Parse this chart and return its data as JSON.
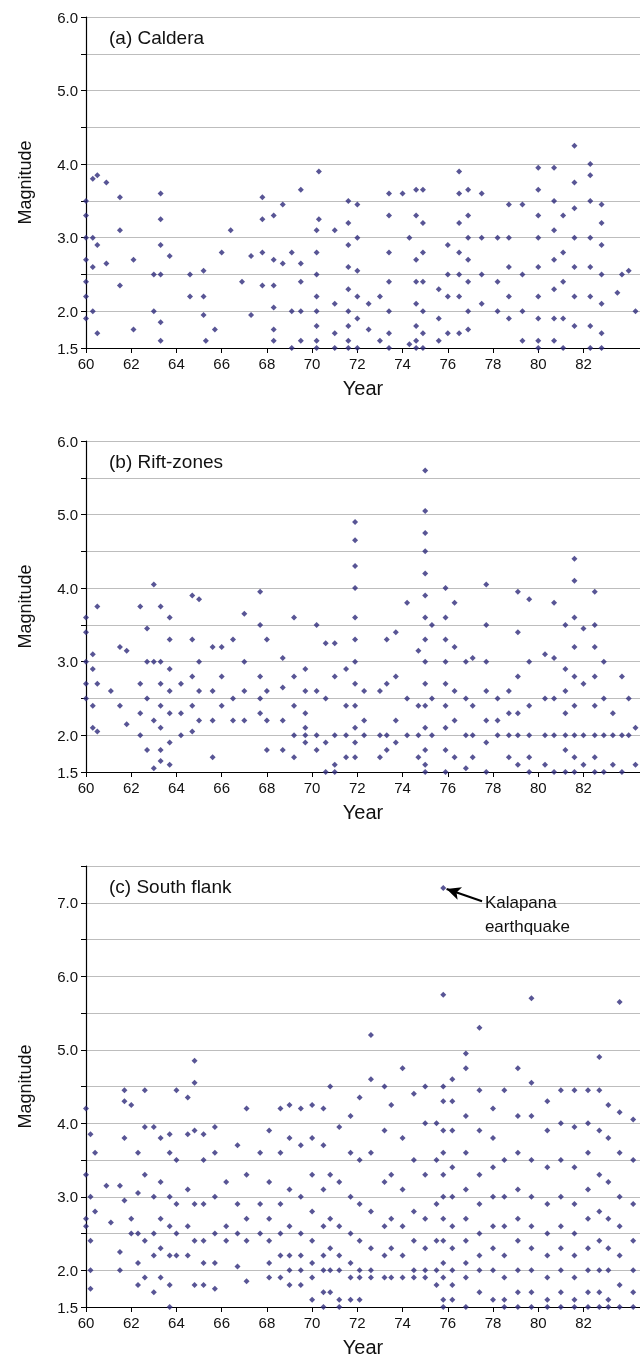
{
  "chart_data": [
    {
      "type": "scatter",
      "title": "(a) Caldera",
      "xlabel": "Year",
      "ylabel": "Magnitude",
      "color": "#2e2a7a",
      "marker": "diamond",
      "grid": "y",
      "xlim": [
        60,
        84.5
      ],
      "xticks": [
        60,
        62,
        64,
        66,
        68,
        70,
        72,
        74,
        76,
        78,
        80,
        82
      ],
      "ylim": [
        1.5,
        6.0
      ],
      "yticks": [
        {
          "value": 1.5,
          "label": "1.5"
        },
        {
          "value": 2,
          "label": "2.0"
        },
        {
          "value": 2.5,
          "label": null
        },
        {
          "value": 3,
          "label": "3.0"
        },
        {
          "value": 3.5,
          "label": null
        },
        {
          "value": 4,
          "label": "4.0"
        },
        {
          "value": 4.5,
          "label": null
        },
        {
          "value": 5,
          "label": "5.0"
        },
        {
          "value": 5.5,
          "label": null
        },
        {
          "value": 6,
          "label": "6.0"
        }
      ],
      "x": [
        60.0,
        60.0,
        60.0,
        60.0,
        60.0,
        60.0,
        60.0,
        60.3,
        60.3,
        60.3,
        60.3,
        60.5,
        60.5,
        60.5,
        60.9,
        60.9,
        61.5,
        61.5,
        61.5,
        62.1,
        62.1,
        63.0,
        63.0,
        63.3,
        63.3,
        63.3,
        63.3,
        63.3,
        63.3,
        63.7,
        64.6,
        64.6,
        65.2,
        65.2,
        65.2,
        65.3,
        65.7,
        66.0,
        66.4,
        66.9,
        67.3,
        67.3,
        67.8,
        67.8,
        67.8,
        67.8,
        68.3,
        68.3,
        68.3,
        68.3,
        68.3,
        68.3,
        68.7,
        68.7,
        69.1,
        69.1,
        69.1,
        69.5,
        69.5,
        69.5,
        69.5,
        69.5,
        70.2,
        70.2,
        70.2,
        70.2,
        70.2,
        70.2,
        70.2,
        70.2,
        70.3,
        70.3,
        71.0,
        71.0,
        71.0,
        71.0,
        71.6,
        71.6,
        71.6,
        71.6,
        71.6,
        71.6,
        71.6,
        71.6,
        71.6,
        72.0,
        72.0,
        72.0,
        72.0,
        72.0,
        72.0,
        72.5,
        72.5,
        73.0,
        73.0,
        73.4,
        73.4,
        73.4,
        73.4,
        73.4,
        73.4,
        73.4,
        74.0,
        74.3,
        74.3,
        74.6,
        74.6,
        74.6,
        74.6,
        74.6,
        74.6,
        74.6,
        74.6,
        74.9,
        74.9,
        74.9,
        74.9,
        74.9,
        74.9,
        74.9,
        75.6,
        75.6,
        75.6,
        76.0,
        76.0,
        76.0,
        76.0,
        76.5,
        76.5,
        76.5,
        76.5,
        76.5,
        76.5,
        76.5,
        76.9,
        76.9,
        76.9,
        76.9,
        76.9,
        76.9,
        76.9,
        77.5,
        77.5,
        77.5,
        77.5,
        78.2,
        78.2,
        78.2,
        78.7,
        78.7,
        78.7,
        78.7,
        78.7,
        79.3,
        79.3,
        79.3,
        79.3,
        80.0,
        80.0,
        80.0,
        80.0,
        80.0,
        80.0,
        80.0,
        80.0,
        80.0,
        80.7,
        80.7,
        80.7,
        80.7,
        80.7,
        80.7,
        80.7,
        81.1,
        81.1,
        81.1,
        81.1,
        81.1,
        81.6,
        81.6,
        81.6,
        81.6,
        81.6,
        81.6,
        81.6,
        82.3,
        82.3,
        82.3,
        82.3,
        82.3,
        82.3,
        82.3,
        82.3,
        82.8,
        82.8,
        82.8,
        82.8,
        82.8,
        82.8,
        82.8,
        83.5,
        83.7,
        84.0,
        84.3
      ],
      "values": [
        3.5,
        3.3,
        3.0,
        2.7,
        2.4,
        2.2,
        1.9,
        3.8,
        3.0,
        2.6,
        2.0,
        3.85,
        2.9,
        1.7,
        3.75,
        2.65,
        3.55,
        3.1,
        2.35,
        2.7,
        1.75,
        2.5,
        2.0,
        3.6,
        3.25,
        2.9,
        2.5,
        1.85,
        1.6,
        2.75,
        2.5,
        2.2,
        2.55,
        2.2,
        1.95,
        1.6,
        1.75,
        2.8,
        3.1,
        2.4,
        2.75,
        1.95,
        3.55,
        3.25,
        2.8,
        2.35,
        3.3,
        2.7,
        2.35,
        2.05,
        1.75,
        1.6,
        3.45,
        2.65,
        2.8,
        2.0,
        1.5,
        3.65,
        2.65,
        2.4,
        2.0,
        1.6,
        3.1,
        2.8,
        2.5,
        2.2,
        2.0,
        1.8,
        1.6,
        1.5,
        3.9,
        3.25,
        3.1,
        2.1,
        1.7,
        1.5,
        3.5,
        3.2,
        2.9,
        2.6,
        2.3,
        2.0,
        1.8,
        1.6,
        1.5,
        3.45,
        3.0,
        2.55,
        2.2,
        1.9,
        1.5,
        2.1,
        1.75,
        2.2,
        1.6,
        3.6,
        3.3,
        2.8,
        2.4,
        2.0,
        1.7,
        1.5,
        3.6,
        3.0,
        1.55,
        3.65,
        3.3,
        2.7,
        2.4,
        2.1,
        1.8,
        1.6,
        1.5,
        3.65,
        3.2,
        2.8,
        2.4,
        2.0,
        1.7,
        1.5,
        2.3,
        1.9,
        1.6,
        2.9,
        2.5,
        2.2,
        1.7,
        3.9,
        3.6,
        3.2,
        2.8,
        2.5,
        2.2,
        1.7,
        3.65,
        3.3,
        3.0,
        2.7,
        2.4,
        2.0,
        1.75,
        3.6,
        3.0,
        2.5,
        2.1,
        3.0,
        2.4,
        2.0,
        3.45,
        3.0,
        2.6,
        2.2,
        1.9,
        3.45,
        2.5,
        2.0,
        1.6,
        3.95,
        3.65,
        3.3,
        3.0,
        2.6,
        2.2,
        1.9,
        1.6,
        1.5,
        3.95,
        3.5,
        3.1,
        2.7,
        2.3,
        1.9,
        1.6,
        3.3,
        2.8,
        2.4,
        1.9,
        1.5,
        4.25,
        3.75,
        3.4,
        3.0,
        2.6,
        2.2,
        1.8,
        4.0,
        3.85,
        3.5,
        3.0,
        2.6,
        2.2,
        1.8,
        1.5,
        3.45,
        3.2,
        2.9,
        2.5,
        2.1,
        1.7,
        1.5,
        2.25,
        2.5,
        2.55,
        2.0
      ]
    },
    {
      "type": "scatter",
      "title": "(b) Rift-zones",
      "xlabel": "Year",
      "ylabel": "Magnitude",
      "color": "#2e2a7a",
      "marker": "diamond",
      "grid": "y",
      "xlim": [
        60,
        84.5
      ],
      "xticks": [
        60,
        62,
        64,
        66,
        68,
        70,
        72,
        74,
        76,
        78,
        80,
        82
      ],
      "ylim": [
        1.5,
        6.0
      ],
      "yticks": [
        {
          "value": 1.5,
          "label": "1.5"
        },
        {
          "value": 2,
          "label": "2.0"
        },
        {
          "value": 2.5,
          "label": null
        },
        {
          "value": 3,
          "label": "3.0"
        },
        {
          "value": 3.5,
          "label": null
        },
        {
          "value": 4,
          "label": "4.0"
        },
        {
          "value": 4.5,
          "label": null
        },
        {
          "value": 5,
          "label": "5.0"
        },
        {
          "value": 5.5,
          "label": null
        },
        {
          "value": 6,
          "label": "6.0"
        }
      ],
      "x": [
        60.0,
        60.0,
        60.0,
        60.0,
        60.0,
        60.3,
        60.3,
        60.3,
        60.3,
        60.5,
        60.5,
        60.5,
        61.1,
        61.5,
        61.5,
        61.8,
        61.8,
        62.4,
        62.4,
        62.4,
        62.4,
        62.7,
        62.7,
        62.7,
        62.7,
        63.0,
        63.0,
        63.0,
        63.0,
        63.3,
        63.3,
        63.3,
        63.3,
        63.3,
        63.3,
        63.3,
        63.7,
        63.7,
        63.7,
        63.7,
        63.7,
        63.7,
        63.7,
        64.2,
        64.2,
        64.2,
        64.7,
        64.7,
        64.7,
        64.7,
        64.7,
        65.0,
        65.0,
        65.0,
        65.0,
        65.6,
        65.6,
        65.6,
        65.6,
        66.0,
        66.0,
        66.0,
        66.5,
        66.5,
        66.5,
        67.0,
        67.0,
        67.0,
        67.0,
        67.7,
        67.7,
        67.7,
        67.7,
        67.7,
        68.0,
        68.0,
        68.0,
        68.0,
        68.7,
        68.7,
        68.7,
        68.7,
        69.2,
        69.2,
        69.2,
        69.2,
        69.2,
        69.7,
        69.7,
        69.7,
        69.7,
        69.7,
        69.7,
        70.2,
        70.2,
        70.2,
        70.2,
        70.6,
        70.6,
        70.6,
        70.6,
        71.0,
        71.0,
        71.0,
        71.0,
        71.0,
        71.5,
        71.5,
        71.5,
        71.5,
        71.9,
        71.9,
        71.9,
        71.9,
        71.9,
        71.9,
        71.9,
        71.9,
        71.9,
        71.9,
        71.9,
        71.9,
        72.3,
        72.3,
        72.3,
        73.0,
        73.0,
        73.0,
        73.3,
        73.3,
        73.3,
        73.3,
        73.7,
        73.7,
        73.7,
        73.7,
        74.2,
        74.2,
        74.2,
        74.7,
        74.7,
        74.7,
        74.7,
        75.0,
        75.0,
        75.0,
        75.0,
        75.0,
        75.0,
        75.0,
        75.0,
        75.0,
        75.0,
        75.0,
        75.0,
        75.0,
        75.0,
        75.0,
        75.3,
        75.3,
        75.3,
        75.9,
        75.9,
        75.9,
        75.9,
        75.9,
        75.9,
        75.9,
        75.9,
        75.9,
        76.3,
        76.3,
        76.3,
        76.3,
        76.3,
        76.8,
        76.8,
        76.8,
        76.8,
        77.1,
        77.1,
        77.1,
        77.1,
        77.7,
        77.7,
        77.7,
        77.7,
        77.7,
        77.7,
        77.7,
        78.2,
        78.2,
        78.2,
        78.7,
        78.7,
        78.7,
        78.7,
        79.1,
        79.1,
        79.1,
        79.1,
        79.1,
        79.1,
        79.6,
        79.6,
        79.6,
        79.6,
        79.6,
        79.6,
        80.3,
        80.3,
        80.3,
        80.3,
        80.7,
        80.7,
        80.7,
        80.7,
        80.7,
        81.2,
        81.2,
        81.2,
        81.2,
        81.2,
        81.2,
        81.2,
        81.6,
        81.6,
        81.6,
        81.6,
        81.6,
        81.6,
        81.6,
        81.6,
        81.6,
        82.0,
        82.0,
        82.0,
        82.0,
        82.5,
        82.5,
        82.5,
        82.5,
        82.5,
        82.5,
        82.5,
        82.5,
        82.9,
        82.9,
        82.9,
        82.9,
        83.3,
        83.3,
        83.3,
        83.7,
        83.7,
        83.7,
        84.0,
        84.0,
        84.3,
        84.3
      ],
      "values": [
        3.6,
        3.4,
        3.0,
        2.7,
        2.5,
        3.1,
        2.9,
        2.4,
        2.1,
        3.75,
        2.7,
        2.05,
        2.6,
        3.2,
        2.4,
        3.15,
        2.15,
        3.75,
        2.7,
        2.3,
        2.0,
        3.45,
        3.0,
        2.5,
        1.8,
        4.05,
        3.0,
        2.2,
        1.55,
        3.75,
        3.0,
        2.7,
        2.4,
        2.1,
        1.8,
        1.65,
        3.6,
        3.3,
        2.9,
        2.6,
        2.3,
        1.9,
        1.6,
        2.7,
        2.3,
        2.0,
        3.9,
        3.3,
        2.8,
        2.4,
        2.05,
        3.85,
        3.0,
        2.6,
        2.2,
        3.2,
        2.6,
        2.2,
        1.7,
        3.2,
        2.8,
        2.4,
        3.3,
        2.5,
        2.2,
        3.65,
        3.0,
        2.6,
        2.2,
        3.95,
        3.5,
        2.8,
        2.5,
        2.3,
        3.3,
        2.6,
        2.2,
        1.8,
        3.05,
        2.65,
        2.2,
        1.8,
        3.6,
        2.8,
        2.4,
        2.0,
        1.7,
        2.9,
        2.6,
        2.3,
        2.1,
        2.0,
        1.9,
        3.5,
        2.6,
        2.0,
        1.8,
        3.25,
        2.5,
        1.9,
        1.5,
        3.25,
        2.8,
        2.0,
        1.6,
        1.5,
        2.9,
        2.4,
        2.0,
        1.7,
        4.9,
        4.65,
        4.3,
        4.0,
        3.6,
        3.3,
        3.0,
        2.7,
        2.4,
        2.1,
        1.9,
        1.7,
        2.6,
        2.2,
        2.0,
        2.6,
        2.0,
        1.7,
        3.3,
        2.7,
        2.0,
        1.8,
        3.4,
        2.8,
        2.2,
        1.9,
        3.8,
        2.5,
        2.0,
        3.15,
        2.4,
        2.0,
        1.7,
        5.6,
        5.05,
        4.75,
        4.5,
        4.2,
        3.9,
        3.6,
        3.3,
        3.0,
        2.7,
        2.4,
        2.1,
        1.8,
        1.6,
        1.5,
        3.5,
        2.5,
        2.0,
        4.0,
        3.6,
        3.3,
        3.0,
        2.7,
        2.4,
        2.1,
        1.8,
        1.5,
        3.8,
        3.2,
        2.6,
        2.2,
        1.7,
        3.0,
        2.5,
        2.0,
        1.55,
        3.05,
        2.4,
        2.0,
        1.7,
        4.05,
        3.5,
        3.0,
        2.6,
        2.2,
        1.9,
        1.5,
        2.5,
        2.2,
        2.0,
        2.6,
        2.3,
        2.0,
        1.7,
        3.95,
        3.4,
        2.8,
        2.3,
        2.0,
        1.6,
        3.85,
        3.0,
        2.4,
        2.0,
        1.7,
        1.5,
        3.1,
        2.5,
        2.0,
        1.6,
        3.8,
        3.05,
        2.5,
        2.0,
        1.5,
        3.5,
        2.9,
        2.6,
        2.3,
        2.0,
        1.8,
        1.5,
        4.4,
        4.1,
        3.6,
        3.2,
        2.8,
        2.4,
        2.0,
        1.7,
        1.5,
        3.45,
        2.7,
        2.0,
        1.6,
        3.95,
        3.5,
        3.2,
        2.8,
        2.4,
        2.0,
        1.7,
        1.5,
        3.0,
        2.5,
        2.0,
        1.5,
        2.3,
        2.0,
        1.6,
        2.8,
        2.0,
        1.5,
        2.5,
        2.0,
        2.1,
        1.6
      ]
    },
    {
      "type": "scatter",
      "title": "(c) South flank",
      "xlabel": "Year",
      "ylabel": "Magnitude",
      "color": "#2e2a7a",
      "marker": "diamond",
      "grid": "y",
      "xlim": [
        60,
        84.5
      ],
      "xticks": [
        60,
        62,
        64,
        66,
        68,
        70,
        72,
        74,
        76,
        78,
        80,
        82
      ],
      "ylim": [
        1.5,
        7.5
      ],
      "yticks": [
        {
          "value": 1.5,
          "label": "1.5"
        },
        {
          "value": 2,
          "label": "2.0"
        },
        {
          "value": 2.5,
          "label": null
        },
        {
          "value": 3,
          "label": "3.0"
        },
        {
          "value": 3.5,
          "label": null
        },
        {
          "value": 4,
          "label": "4.0"
        },
        {
          "value": 4.5,
          "label": null
        },
        {
          "value": 5,
          "label": "5.0"
        },
        {
          "value": 5.5,
          "label": null
        },
        {
          "value": 6,
          "label": "6.0"
        },
        {
          "value": 6.5,
          "label": null
        },
        {
          "value": 7,
          "label": "7.0"
        },
        {
          "value": 7.5,
          "label": null
        }
      ],
      "annotations": [
        {
          "text": "Kalapana earthquake",
          "x": 75.8,
          "y": 7.2
        }
      ],
      "x": [
        60.0,
        60.0,
        60.0,
        60.0,
        60.2,
        60.2,
        60.2,
        60.2,
        60.2,
        60.4,
        60.4,
        60.9,
        61.1,
        61.5,
        61.5,
        61.5,
        61.7,
        61.7,
        61.7,
        61.7,
        62.0,
        62.0,
        62.0,
        62.3,
        62.3,
        62.3,
        62.3,
        62.3,
        62.6,
        62.6,
        62.6,
        62.6,
        62.6,
        63.0,
        63.0,
        63.0,
        63.0,
        63.0,
        63.3,
        63.3,
        63.3,
        63.3,
        63.3,
        63.7,
        63.7,
        63.7,
        63.7,
        63.7,
        63.7,
        63.7,
        64.0,
        64.0,
        64.0,
        64.0,
        64.0,
        64.5,
        64.5,
        64.5,
        64.5,
        64.5,
        64.8,
        64.8,
        64.8,
        64.8,
        64.8,
        64.8,
        65.2,
        65.2,
        65.2,
        65.2,
        65.2,
        65.2,
        65.7,
        65.7,
        65.7,
        65.7,
        65.7,
        65.7,
        66.2,
        66.2,
        66.2,
        66.7,
        66.7,
        66.7,
        66.7,
        67.1,
        67.1,
        67.1,
        67.1,
        67.1,
        67.7,
        67.7,
        67.7,
        68.1,
        68.1,
        68.1,
        68.1,
        68.1,
        68.1,
        68.6,
        68.6,
        68.6,
        68.6,
        68.6,
        68.6,
        69.0,
        69.0,
        69.0,
        69.0,
        69.0,
        69.0,
        69.0,
        69.5,
        69.5,
        69.5,
        69.5,
        69.5,
        69.5,
        69.5,
        70.0,
        70.0,
        70.0,
        70.0,
        70.0,
        70.0,
        70.0,
        70.0,
        70.5,
        70.5,
        70.5,
        70.5,
        70.5,
        70.5,
        70.5,
        70.5,
        70.8,
        70.8,
        70.8,
        70.8,
        70.8,
        70.8,
        71.2,
        71.2,
        71.2,
        71.2,
        71.2,
        71.2,
        71.2,
        71.7,
        71.7,
        71.7,
        71.7,
        71.7,
        71.7,
        71.7,
        72.1,
        72.1,
        72.1,
        72.1,
        72.1,
        72.1,
        72.1,
        72.6,
        72.6,
        72.6,
        72.6,
        72.6,
        72.6,
        72.6,
        73.2,
        73.2,
        73.2,
        73.2,
        73.2,
        73.2,
        73.5,
        73.5,
        73.5,
        73.5,
        73.5,
        74.0,
        74.0,
        74.0,
        74.0,
        74.0,
        74.0,
        74.5,
        74.5,
        74.5,
        74.5,
        74.5,
        74.5,
        75.0,
        75.0,
        75.0,
        75.0,
        75.0,
        75.0,
        75.0,
        75.5,
        75.5,
        75.5,
        75.5,
        75.5,
        75.5,
        75.8,
        75.8,
        75.8,
        75.8,
        75.8,
        75.8,
        75.8,
        75.8,
        75.8,
        75.8,
        75.8,
        75.8,
        75.8,
        75.8,
        76.2,
        76.2,
        76.2,
        76.2,
        76.2,
        76.2,
        76.2,
        76.2,
        76.2,
        76.2,
        76.8,
        76.8,
        76.8,
        76.8,
        76.8,
        76.8,
        76.8,
        76.8,
        76.8,
        76.8,
        77.4,
        77.4,
        77.4,
        77.4,
        77.4,
        77.4,
        77.4,
        77.4,
        77.4,
        78.0,
        78.0,
        78.0,
        78.0,
        78.0,
        78.0,
        78.0,
        78.0,
        78.5,
        78.5,
        78.5,
        78.5,
        78.5,
        78.5,
        78.5,
        78.5,
        79.1,
        79.1,
        79.1,
        79.1,
        79.1,
        79.1,
        79.1,
        79.1,
        79.1,
        79.7,
        79.7,
        79.7,
        79.7,
        79.7,
        79.7,
        79.7,
        79.7,
        79.7,
        79.7,
        80.4,
        80.4,
        80.4,
        80.4,
        80.4,
        80.4,
        80.4,
        80.4,
        80.4,
        81.0,
        81.0,
        81.0,
        81.0,
        81.0,
        81.0,
        81.0,
        81.0,
        81.0,
        81.6,
        81.6,
        81.6,
        81.6,
        81.6,
        81.6,
        81.6,
        81.6,
        81.6,
        82.2,
        82.2,
        82.2,
        82.2,
        82.2,
        82.2,
        82.2,
        82.2,
        82.2,
        82.7,
        82.7,
        82.7,
        82.7,
        82.7,
        82.7,
        82.7,
        82.7,
        82.7,
        83.1,
        83.1,
        83.1,
        83.1,
        83.1,
        83.1,
        83.1,
        83.1,
        83.6,
        83.6,
        83.6,
        83.6,
        83.6,
        83.6,
        83.6,
        83.6,
        84.2,
        84.2,
        84.2,
        84.2,
        84.2,
        84.2,
        84.2
      ],
      "values": [
        4.2,
        3.3,
        2.7,
        2.6,
        3.85,
        3.0,
        2.4,
        2.0,
        1.75,
        3.6,
        2.8,
        3.15,
        2.65,
        3.15,
        2.25,
        2.0,
        4.45,
        4.3,
        3.8,
        2.95,
        4.25,
        2.7,
        2.5,
        3.6,
        3.05,
        2.5,
        2.1,
        1.8,
        4.45,
        3.95,
        3.3,
        2.4,
        1.9,
        3.95,
        3.0,
        2.5,
        2.2,
        1.7,
        3.8,
        3.2,
        2.7,
        2.3,
        1.9,
        3.85,
        3.6,
        3.0,
        2.6,
        2.2,
        1.8,
        1.5,
        4.45,
        3.5,
        2.9,
        2.5,
        2.2,
        4.35,
        3.85,
        3.1,
        2.6,
        2.2,
        4.85,
        4.55,
        3.9,
        2.9,
        2.4,
        1.8,
        3.85,
        3.5,
        2.9,
        2.4,
        2.1,
        1.8,
        3.95,
        3.6,
        3.0,
        2.5,
        2.1,
        1.75,
        3.2,
        2.6,
        2.4,
        3.7,
        2.9,
        2.5,
        2.05,
        4.2,
        3.3,
        2.7,
        2.4,
        1.85,
        3.6,
        2.9,
        2.5,
        3.9,
        3.2,
        2.7,
        2.4,
        2.1,
        1.9,
        4.2,
        3.6,
        2.9,
        2.5,
        2.2,
        1.9,
        4.25,
        3.8,
        3.1,
        2.6,
        2.2,
        2.0,
        1.8,
        4.2,
        3.7,
        3.0,
        2.5,
        2.2,
        2.0,
        1.8,
        4.25,
        3.8,
        3.3,
        2.8,
        2.4,
        2.1,
        1.9,
        1.6,
        4.2,
        3.7,
        3.1,
        2.6,
        2.2,
        2.0,
        1.7,
        1.5,
        4.5,
        3.3,
        2.7,
        2.3,
        2.0,
        1.7,
        3.95,
        3.2,
        2.6,
        2.2,
        2.0,
        1.6,
        1.5,
        4.1,
        3.6,
        3.0,
        2.5,
        2.1,
        1.9,
        1.6,
        4.35,
        3.5,
        2.9,
        2.4,
        2.0,
        1.9,
        1.6,
        5.2,
        4.6,
        3.6,
        2.8,
        2.3,
        2.0,
        1.9,
        4.5,
        3.9,
        3.2,
        2.6,
        2.2,
        1.9,
        4.25,
        3.3,
        2.7,
        2.3,
        1.9,
        4.75,
        3.8,
        3.1,
        2.6,
        2.2,
        1.9,
        4.4,
        3.5,
        2.8,
        2.4,
        2.0,
        1.9,
        4.5,
        4.0,
        3.3,
        2.7,
        2.3,
        2.0,
        1.9,
        4.0,
        3.5,
        2.9,
        2.4,
        2.0,
        1.8,
        7.2,
        5.75,
        4.5,
        4.3,
        3.9,
        3.6,
        3.3,
        3.0,
        2.7,
        2.4,
        2.1,
        1.9,
        1.6,
        1.5,
        4.6,
        4.3,
        3.9,
        3.4,
        3.0,
        2.6,
        2.3,
        2.0,
        1.8,
        1.6,
        4.95,
        4.75,
        4.1,
        3.6,
        3.1,
        2.7,
        2.4,
        2.1,
        1.9,
        1.5,
        5.3,
        4.45,
        3.9,
        3.3,
        2.9,
        2.5,
        2.2,
        2.0,
        1.7,
        4.2,
        3.8,
        3.4,
        3.0,
        2.6,
        2.3,
        2.0,
        1.6,
        4.45,
        3.5,
        3.0,
        2.6,
        2.2,
        1.9,
        1.6,
        1.5,
        4.75,
        4.1,
        3.6,
        3.1,
        2.7,
        2.4,
        2.0,
        1.7,
        1.5,
        5.7,
        4.55,
        4.1,
        3.5,
        3.0,
        2.6,
        2.3,
        2.0,
        1.7,
        1.5,
        4.3,
        3.9,
        3.4,
        2.9,
        2.5,
        2.2,
        1.9,
        1.6,
        1.5,
        4.45,
        4.0,
        3.5,
        3.0,
        2.6,
        2.3,
        2.0,
        1.7,
        1.5,
        4.45,
        3.95,
        3.4,
        2.9,
        2.5,
        2.2,
        1.9,
        1.6,
        1.5,
        4.45,
        4.0,
        3.6,
        3.1,
        2.7,
        2.3,
        2.0,
        1.7,
        1.5,
        4.9,
        4.45,
        3.9,
        3.3,
        2.8,
        2.4,
        2.0,
        1.7,
        1.5,
        4.25,
        3.8,
        3.2,
        2.7,
        2.3,
        2.0,
        1.6,
        1.5,
        5.65,
        4.15,
        3.6,
        3.0,
        2.6,
        2.2,
        1.8,
        1.5,
        4.05,
        3.5,
        2.9,
        2.4,
        2.0,
        1.7,
        1.5
      ]
    }
  ]
}
